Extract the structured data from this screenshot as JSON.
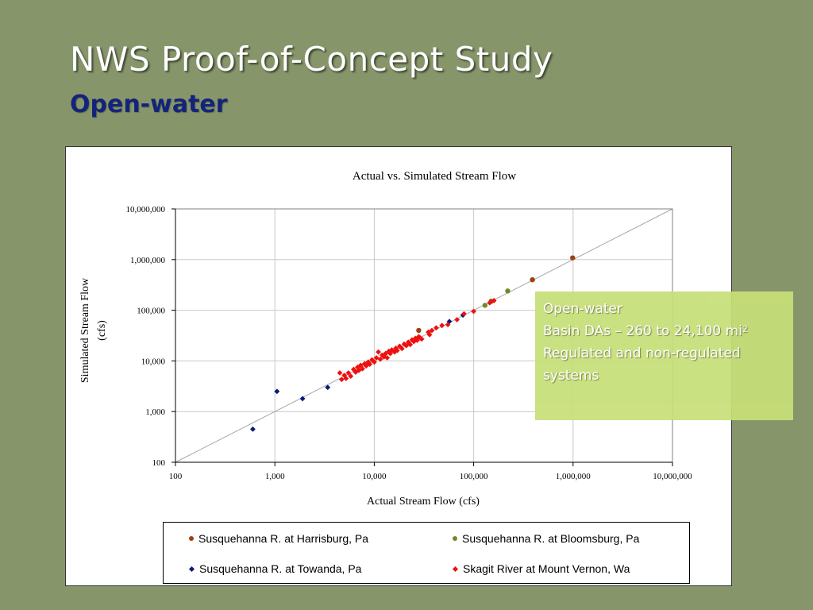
{
  "slide": {
    "title": "NWS Proof-of-Concept Study",
    "subtitle": "Open-water"
  },
  "callout": {
    "line1": "Open-water",
    "line2": "Basin DAs – 260 to 24,100 mi",
    "line2_sup": "2",
    "line3": "Regulated and non-regulated systems"
  },
  "chart_data": {
    "type": "scatter",
    "title": "Actual vs. Simulated Stream Flow",
    "xlabel": "Actual Stream Flow (cfs)",
    "ylabel_lines": [
      "Simulated Stream Flow",
      "(cfs)"
    ],
    "xscale": "log",
    "yscale": "log",
    "xlim": [
      100,
      10000000
    ],
    "ylim": [
      100,
      10000000
    ],
    "x_ticks": [
      "100",
      "1,000",
      "10,000",
      "100,000",
      "1,000,000",
      "10,000,000"
    ],
    "y_ticks": [
      "100",
      "1,000",
      "10,000",
      "100,000",
      "1,000,000",
      "10,000,000"
    ],
    "grid": "vertical-and-horizontal",
    "reference_line": "1:1",
    "legend_position": "bottom",
    "series": [
      {
        "name": "Susquehanna R. at Harrisburg, Pa",
        "marker": "circle",
        "color": "#a0400e",
        "points": [
          [
            28000,
            40000
          ],
          [
            150000,
            150000
          ],
          [
            390000,
            400000
          ],
          [
            990000,
            1080000
          ]
        ]
      },
      {
        "name": "Susquehanna R. at Bloomsburg, Pa",
        "marker": "circle",
        "color": "#6e8a2a",
        "points": [
          [
            130000,
            125000
          ],
          [
            220000,
            240000
          ]
        ]
      },
      {
        "name": "Susquehanna R. at Towanda, Pa",
        "marker": "diamond",
        "color": "#0a1a7a",
        "points": [
          [
            600,
            450
          ],
          [
            1050,
            2500
          ],
          [
            1900,
            1800
          ],
          [
            3400,
            3000
          ],
          [
            57000,
            60000
          ],
          [
            78000,
            80000
          ]
        ]
      },
      {
        "name": "Skagit River at Mount Vernon, Wa",
        "marker": "diamond",
        "color": "#ee1010",
        "points": [
          [
            4500,
            5800
          ],
          [
            4700,
            4300
          ],
          [
            5000,
            5200
          ],
          [
            5200,
            4500
          ],
          [
            5500,
            5800
          ],
          [
            5800,
            5000
          ],
          [
            6200,
            6800
          ],
          [
            6500,
            6000
          ],
          [
            6800,
            7500
          ],
          [
            7000,
            6500
          ],
          [
            7300,
            8200
          ],
          [
            7600,
            7000
          ],
          [
            8000,
            8800
          ],
          [
            8300,
            8000
          ],
          [
            8700,
            9500
          ],
          [
            9000,
            8600
          ],
          [
            9500,
            10500
          ],
          [
            10000,
            9500
          ],
          [
            10500,
            11500
          ],
          [
            11000,
            15000
          ],
          [
            11500,
            10800
          ],
          [
            12000,
            13000
          ],
          [
            12500,
            12000
          ],
          [
            13000,
            14000
          ],
          [
            13500,
            11500
          ],
          [
            14000,
            15500
          ],
          [
            14500,
            14000
          ],
          [
            15000,
            16500
          ],
          [
            16000,
            15000
          ],
          [
            16500,
            17800
          ],
          [
            17000,
            16000
          ],
          [
            18000,
            19500
          ],
          [
            19000,
            17500
          ],
          [
            20000,
            21500
          ],
          [
            21000,
            20000
          ],
          [
            22000,
            23500
          ],
          [
            23000,
            21000
          ],
          [
            24000,
            26000
          ],
          [
            25000,
            24000
          ],
          [
            26000,
            28000
          ],
          [
            27000,
            25500
          ],
          [
            28000,
            30000
          ],
          [
            29000,
            28500
          ],
          [
            30000,
            27000
          ],
          [
            35000,
            37000
          ],
          [
            36000,
            33000
          ],
          [
            38000,
            40000
          ],
          [
            42000,
            45000
          ],
          [
            48000,
            50000
          ],
          [
            55000,
            52000
          ],
          [
            68000,
            65000
          ],
          [
            80000,
            85000
          ],
          [
            100000,
            95000
          ],
          [
            145000,
            140000
          ],
          [
            160000,
            155000
          ]
        ]
      }
    ]
  }
}
